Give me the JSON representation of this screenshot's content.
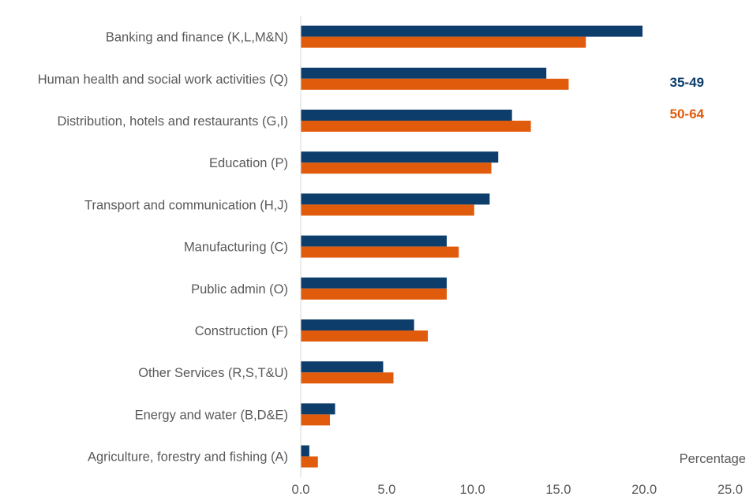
{
  "chart_data": {
    "type": "bar",
    "orientation": "horizontal",
    "categories": [
      "Banking and finance (K,L,M&N)",
      "Human health and social work activities (Q)",
      "Distribution, hotels and restaurants (G,I)",
      "Education (P)",
      "Transport and communication (H,J)",
      "Manufacturing (C)",
      "Public admin (O)",
      "Construction (F)",
      "Other Services (R,S,T&U)",
      "Energy and water (B,D&E)",
      "Agriculture, forestry and fishing (A)"
    ],
    "series": [
      {
        "name": "35-49",
        "color": "#0d3d6b",
        "values": [
          19.9,
          14.3,
          12.3,
          11.5,
          11.0,
          8.5,
          8.5,
          6.6,
          4.8,
          2.0,
          0.5
        ]
      },
      {
        "name": "50-64",
        "color": "#e05c0c",
        "values": [
          16.6,
          15.6,
          13.4,
          11.1,
          10.1,
          9.2,
          8.5,
          7.4,
          5.4,
          1.7,
          1.0
        ]
      }
    ],
    "xlim": [
      0,
      25
    ],
    "xticks": [
      "0.0",
      "5.0",
      "10.0",
      "15.0",
      "20.0",
      "25.0"
    ],
    "xlabel": "Percentage",
    "ylabel": "",
    "title": "",
    "grid": false,
    "legend_position": "right"
  }
}
